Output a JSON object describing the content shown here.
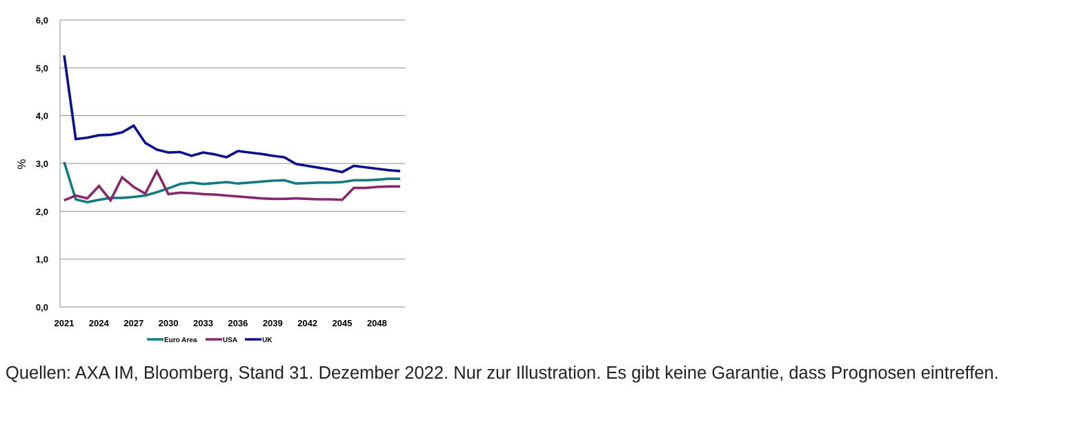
{
  "chart_data": {
    "type": "line",
    "title": "",
    "xlabel": "",
    "ylabel": "%",
    "ylim": [
      0,
      6
    ],
    "yticks": [
      "0,0",
      "1,0",
      "2,0",
      "3,0",
      "4,0",
      "5,0",
      "6,0"
    ],
    "xticks": [
      "2021",
      "2024",
      "2027",
      "2030",
      "2033",
      "2036",
      "2039",
      "2042",
      "2045",
      "2048"
    ],
    "grid": true,
    "legend": "bottom",
    "x": [
      2021,
      2022,
      2023,
      2024,
      2025,
      2026,
      2027,
      2028,
      2029,
      2030,
      2031,
      2032,
      2033,
      2034,
      2035,
      2036,
      2037,
      2038,
      2039,
      2040,
      2041,
      2042,
      2043,
      2044,
      2045,
      2046,
      2047,
      2048,
      2049,
      2050
    ],
    "series": [
      {
        "name": "Euro Area",
        "color": "#137a7f",
        "values": [
          3.03,
          2.25,
          2.19,
          2.24,
          2.28,
          2.28,
          2.3,
          2.33,
          2.4,
          2.48,
          2.57,
          2.6,
          2.57,
          2.59,
          2.61,
          2.58,
          2.6,
          2.62,
          2.64,
          2.65,
          2.58,
          2.59,
          2.6,
          2.6,
          2.61,
          2.65,
          2.65,
          2.66,
          2.68,
          2.68
        ]
      },
      {
        "name": "USA",
        "color": "#87286e",
        "values": [
          2.23,
          2.33,
          2.27,
          2.53,
          2.23,
          2.71,
          2.51,
          2.37,
          2.84,
          2.36,
          2.39,
          2.38,
          2.36,
          2.35,
          2.33,
          2.31,
          2.29,
          2.27,
          2.26,
          2.26,
          2.27,
          2.26,
          2.25,
          2.25,
          2.24,
          2.49,
          2.49,
          2.51,
          2.52,
          2.52
        ]
      },
      {
        "name": "UK",
        "color": "#0b0c8e",
        "values": [
          5.26,
          3.51,
          3.54,
          3.59,
          3.6,
          3.65,
          3.79,
          3.43,
          3.29,
          3.23,
          3.24,
          3.16,
          3.23,
          3.19,
          3.13,
          3.26,
          3.23,
          3.2,
          3.16,
          3.13,
          2.99,
          2.95,
          2.91,
          2.87,
          2.82,
          2.95,
          2.92,
          2.89,
          2.86,
          2.84
        ]
      }
    ]
  },
  "caption": "Quellen: AXA IM, Bloomberg, Stand 31. Dezember 2022. Nur zur Illustration. Es gibt keine Garantie, dass Prognosen eintreffen."
}
